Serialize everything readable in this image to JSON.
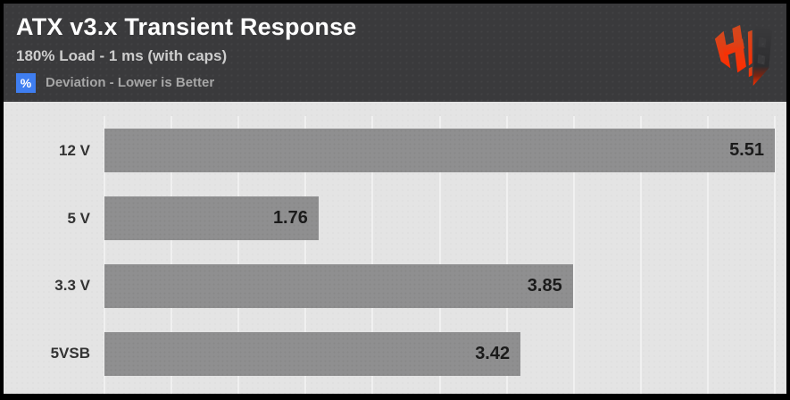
{
  "header": {
    "title": "ATX v3.x Transient Response",
    "subtitle": "180% Load - 1 ms (with caps)",
    "legend": {
      "symbol": "%",
      "label": "Deviation - Lower is Better"
    },
    "logo": "hardware-busters-hb-logo"
  },
  "chart_data": {
    "type": "bar",
    "orientation": "horizontal",
    "title": "ATX v3.x Transient Response",
    "subtitle": "180% Load - 1 ms (with caps)",
    "unit": "%",
    "note": "Deviation - Lower is Better",
    "categories": [
      "12 V",
      "5 V",
      "3.3 V",
      "5VSB"
    ],
    "values": [
      5.51,
      1.76,
      3.85,
      3.42
    ],
    "value_decimals": 2,
    "xlim": [
      0,
      5.51
    ],
    "gridline_count": 11,
    "grid": true,
    "legend_position": "top-left"
  },
  "colors": {
    "header_bg": "#3a3a3c",
    "chart_bg": "#e4e4e4",
    "bar_fill": "#8f8f90",
    "grid_line": "#f0f0f0",
    "accent_blue": "#3f7ef0",
    "title_text": "#ffffff",
    "subtitle_text": "#cdcdcd",
    "legend_text": "#a6a6a6",
    "label_text": "#333333",
    "value_text": "#1b1b1b",
    "logo_red_top": "#d9481f",
    "logo_red_bottom": "#ff2e00",
    "logo_dark": "#323234"
  }
}
